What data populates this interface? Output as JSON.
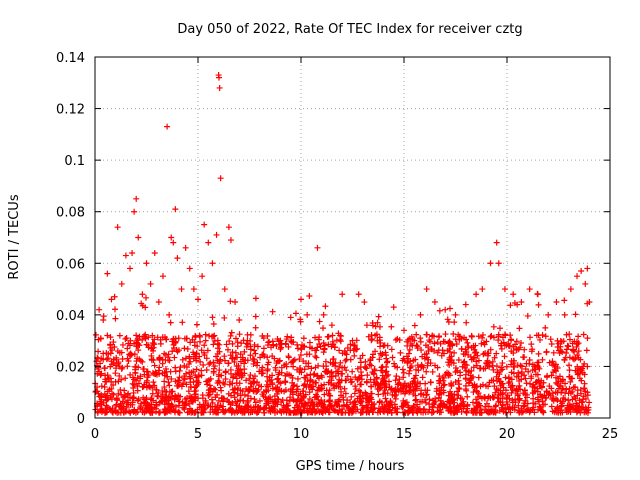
{
  "chart_data": {
    "type": "scatter",
    "title": "Day 050 of 2022, Rate Of TEC Index for receiver cztg",
    "xlabel": "GPS time / hours",
    "ylabel": "ROTI / TECUs",
    "xlim": [
      0,
      25
    ],
    "ylim": [
      0,
      0.14
    ],
    "x_ticks": [
      0,
      5,
      10,
      15,
      20,
      25
    ],
    "x_tick_labels": [
      "0",
      "5",
      "10",
      "15",
      "20",
      "25"
    ],
    "y_ticks": [
      0,
      0.02,
      0.04,
      0.06,
      0.08,
      0.1,
      0.12,
      0.14
    ],
    "y_tick_labels": [
      "0",
      "0.02",
      "0.04",
      "0.06",
      "0.08",
      "0.1",
      "0.12",
      "0.14"
    ],
    "grid": true,
    "marker": "+",
    "color": "#ff0000",
    "series": [
      {
        "name": "ROTI",
        "points": [
          [
            0.1,
            0.012
          ],
          [
            0.2,
            0.018
          ],
          [
            0.3,
            0.008
          ],
          [
            0.4,
            0.025
          ],
          [
            0.5,
            0.015
          ],
          [
            0.6,
            0.032
          ],
          [
            0.7,
            0.011
          ],
          [
            0.8,
            0.022
          ],
          [
            0.9,
            0.009
          ],
          [
            1.0,
            0.014
          ],
          [
            0.2,
            0.042
          ],
          [
            0.4,
            0.038
          ],
          [
            0.6,
            0.056
          ],
          [
            0.8,
            0.046
          ],
          [
            1.1,
            0.074
          ],
          [
            1.3,
            0.052
          ],
          [
            1.5,
            0.063
          ],
          [
            1.7,
            0.058
          ],
          [
            1.8,
            0.064
          ],
          [
            1.9,
            0.08
          ],
          [
            2.0,
            0.085
          ],
          [
            2.1,
            0.07
          ],
          [
            2.3,
            0.048
          ],
          [
            2.5,
            0.06
          ],
          [
            2.7,
            0.052
          ],
          [
            2.9,
            0.064
          ],
          [
            3.1,
            0.045
          ],
          [
            3.3,
            0.055
          ],
          [
            3.5,
            0.113
          ],
          [
            3.6,
            0.04
          ],
          [
            3.7,
            0.07
          ],
          [
            3.8,
            0.068
          ],
          [
            3.9,
            0.081
          ],
          [
            4.0,
            0.062
          ],
          [
            4.2,
            0.05
          ],
          [
            4.4,
            0.066
          ],
          [
            4.6,
            0.058
          ],
          [
            4.8,
            0.05
          ],
          [
            5.0,
            0.046
          ],
          [
            5.2,
            0.055
          ],
          [
            5.3,
            0.075
          ],
          [
            5.5,
            0.068
          ],
          [
            5.7,
            0.06
          ],
          [
            5.9,
            0.071
          ],
          [
            6.0,
            0.133
          ],
          [
            6.02,
            0.132
          ],
          [
            6.05,
            0.128
          ],
          [
            6.1,
            0.093
          ],
          [
            6.3,
            0.05
          ],
          [
            6.5,
            0.074
          ],
          [
            6.6,
            0.069
          ],
          [
            6.8,
            0.045
          ],
          [
            7.0,
            0.038
          ],
          [
            7.4,
            0.03
          ],
          [
            7.8,
            0.035
          ],
          [
            8.2,
            0.027
          ],
          [
            8.6,
            0.024
          ],
          [
            9.0,
            0.03
          ],
          [
            9.5,
            0.039
          ],
          [
            10.0,
            0.046
          ],
          [
            10.3,
            0.04
          ],
          [
            10.8,
            0.066
          ],
          [
            11.1,
            0.04
          ],
          [
            11.5,
            0.036
          ],
          [
            12.0,
            0.048
          ],
          [
            12.5,
            0.03
          ],
          [
            12.8,
            0.048
          ],
          [
            13.2,
            0.036
          ],
          [
            13.6,
            0.032
          ],
          [
            14.0,
            0.028
          ],
          [
            14.5,
            0.043
          ],
          [
            15.0,
            0.034
          ],
          [
            15.5,
            0.03
          ],
          [
            15.8,
            0.04
          ],
          [
            16.1,
            0.05
          ],
          [
            16.5,
            0.045
          ],
          [
            17.0,
            0.042
          ],
          [
            17.5,
            0.04
          ],
          [
            18.0,
            0.044
          ],
          [
            18.5,
            0.048
          ],
          [
            18.8,
            0.05
          ],
          [
            19.2,
            0.06
          ],
          [
            19.5,
            0.068
          ],
          [
            19.6,
            0.06
          ],
          [
            19.9,
            0.05
          ],
          [
            20.3,
            0.048
          ],
          [
            20.7,
            0.045
          ],
          [
            21.1,
            0.05
          ],
          [
            21.5,
            0.048
          ],
          [
            22.0,
            0.04
          ],
          [
            22.4,
            0.045
          ],
          [
            22.8,
            0.04
          ],
          [
            23.1,
            0.05
          ],
          [
            23.4,
            0.055
          ],
          [
            23.6,
            0.057
          ],
          [
            23.8,
            0.052
          ],
          [
            23.9,
            0.058
          ],
          [
            24.0,
            0.045
          ],
          [
            23.9,
            0.01
          ],
          [
            23.7,
            0.02
          ]
        ],
        "band": {
          "x_start": 0,
          "x_end": 24,
          "y_floor": 0.002,
          "y_core": 0.018,
          "note": "dense background cluster of red plus markers between about 0.003 and 0.03 TECU/s throughout the day"
        }
      }
    ]
  }
}
